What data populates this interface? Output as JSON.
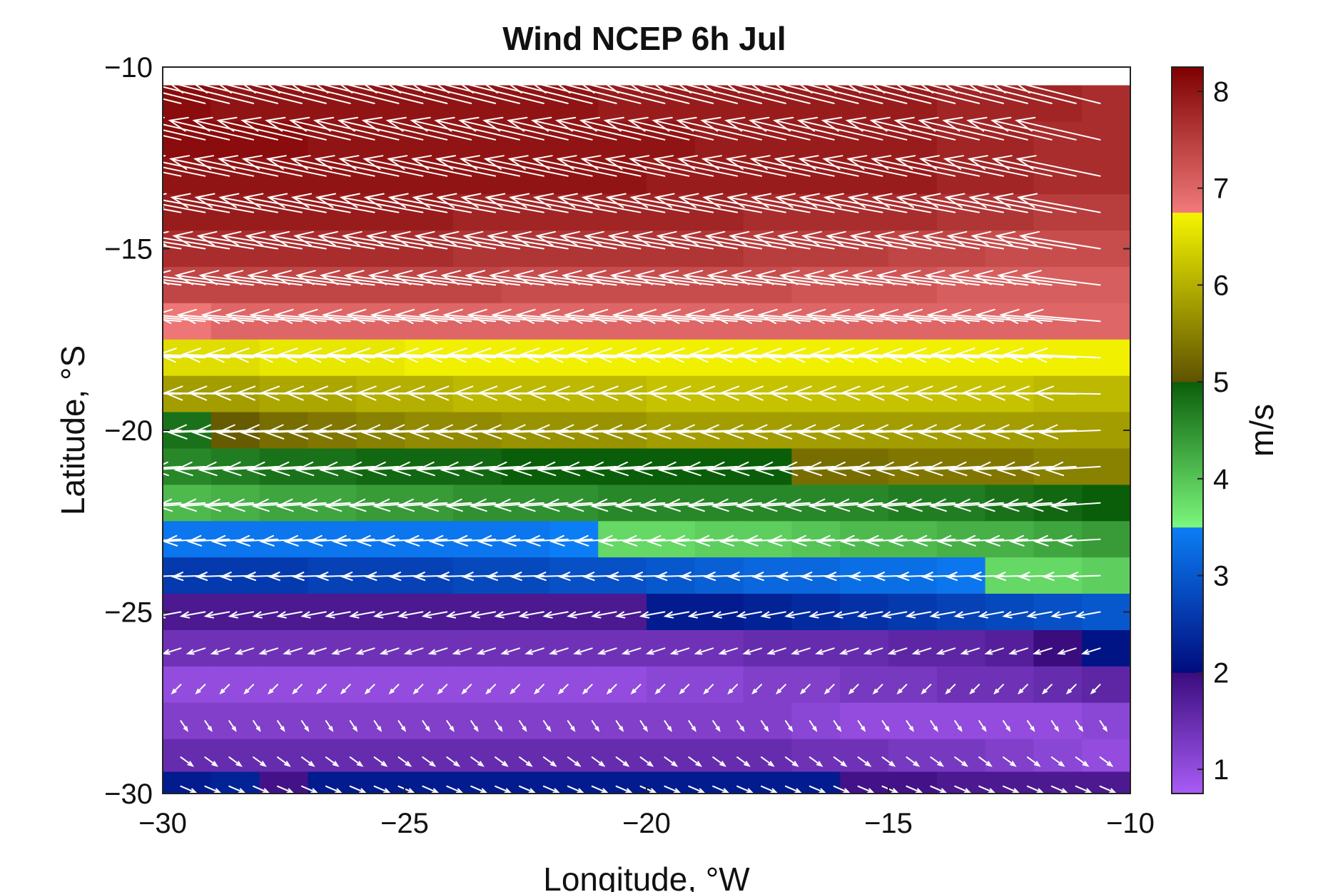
{
  "chart_data": {
    "type": "heatmap",
    "title": "Wind NCEP 6h Jul",
    "xlabel": "Longitude, °W",
    "ylabel": "Latitude, °S",
    "xlim": [
      -30,
      -10
    ],
    "ylim": [
      -30,
      -10
    ],
    "x_ticks": [
      -30,
      -25,
      -20,
      -15,
      -10
    ],
    "y_ticks": [
      -10,
      -15,
      -20,
      -25,
      -30
    ],
    "grid": false,
    "grid_spacing_deg": 1,
    "colorbar": {
      "label": "m/s",
      "range": [
        0.75,
        8.25
      ],
      "ticks": [
        1,
        2,
        3,
        4,
        5,
        6,
        7,
        8
      ],
      "position": "right",
      "segments": [
        {
          "range": [
            0.75,
            2.0
          ],
          "from": "#a95cf5",
          "to": "#3a0c7e"
        },
        {
          "range": [
            2.0,
            3.5
          ],
          "from": "#000c7e",
          "to": "#0c7ef5"
        },
        {
          "range": [
            3.5,
            5.0
          ],
          "from": "#7cf77c",
          "to": "#0a5e0a"
        },
        {
          "range": [
            5.0,
            6.75
          ],
          "from": "#5e5200",
          "to": "#f5f500"
        },
        {
          "range": [
            6.75,
            8.25
          ],
          "from": "#f27a7a",
          "to": "#7e0000"
        }
      ]
    },
    "rows": [
      {
        "lat": -11,
        "speeds": [
          8.1,
          8.0,
          8.0,
          8.0,
          8.0,
          8.0,
          8.0,
          8.0,
          8.0,
          7.9,
          7.9,
          7.9,
          7.9,
          7.9,
          7.9,
          7.9,
          7.8,
          7.8,
          7.8,
          7.7
        ],
        "u": -8.0,
        "v": 2.0
      },
      {
        "lat": -12,
        "speeds": [
          8.1,
          8.1,
          8.1,
          8.0,
          8.0,
          8.0,
          8.0,
          8.0,
          8.0,
          8.0,
          8.0,
          7.9,
          7.9,
          7.9,
          7.9,
          7.9,
          7.8,
          7.8,
          7.7,
          7.7
        ],
        "u": -7.8,
        "v": 1.8
      },
      {
        "lat": -13,
        "speeds": [
          8.0,
          8.0,
          8.0,
          8.0,
          8.0,
          8.0,
          8.0,
          8.0,
          8.0,
          8.0,
          7.9,
          7.9,
          7.9,
          7.9,
          7.9,
          7.9,
          7.8,
          7.8,
          7.7,
          7.7
        ],
        "u": -7.7,
        "v": 1.6
      },
      {
        "lat": -14,
        "speeds": [
          7.9,
          7.9,
          7.9,
          7.9,
          7.9,
          7.9,
          7.8,
          7.8,
          7.8,
          7.8,
          7.8,
          7.8,
          7.7,
          7.7,
          7.7,
          7.7,
          7.6,
          7.6,
          7.5,
          7.5
        ],
        "u": -7.6,
        "v": 1.4
      },
      {
        "lat": -15,
        "speeds": [
          7.7,
          7.7,
          7.7,
          7.7,
          7.7,
          7.7,
          7.6,
          7.6,
          7.6,
          7.6,
          7.6,
          7.6,
          7.5,
          7.5,
          7.5,
          7.4,
          7.4,
          7.3,
          7.3,
          7.3
        ],
        "u": -7.4,
        "v": 1.2
      },
      {
        "lat": -16,
        "speeds": [
          7.4,
          7.4,
          7.4,
          7.4,
          7.4,
          7.4,
          7.4,
          7.3,
          7.3,
          7.3,
          7.3,
          7.3,
          7.3,
          7.2,
          7.2,
          7.2,
          7.1,
          7.1,
          7.1,
          7.1
        ],
        "u": -7.2,
        "v": 0.9
      },
      {
        "lat": -17,
        "speeds": [
          6.8,
          7.0,
          7.0,
          7.0,
          7.0,
          7.0,
          7.0,
          7.0,
          7.0,
          7.0,
          7.0,
          7.0,
          7.0,
          7.0,
          7.0,
          7.0,
          7.0,
          7.0,
          7.0,
          7.0
        ],
        "u": -7.0,
        "v": 0.6
      },
      {
        "lat": -18,
        "speeds": [
          6.5,
          6.5,
          6.6,
          6.6,
          6.6,
          6.7,
          6.7,
          6.7,
          6.7,
          6.7,
          6.7,
          6.7,
          6.7,
          6.7,
          6.7,
          6.7,
          6.7,
          6.7,
          6.7,
          6.7
        ],
        "u": -6.6,
        "v": 0.3
      },
      {
        "lat": -19,
        "speeds": [
          5.8,
          5.8,
          5.9,
          5.9,
          6.0,
          6.0,
          6.1,
          6.1,
          6.1,
          6.1,
          6.2,
          6.2,
          6.2,
          6.2,
          6.2,
          6.2,
          6.2,
          6.2,
          6.1,
          6.1
        ],
        "u": -6.0,
        "v": 0.1
      },
      {
        "lat": -20,
        "speeds": [
          4.8,
          5.1,
          5.3,
          5.4,
          5.5,
          5.6,
          5.6,
          5.7,
          5.7,
          5.7,
          5.8,
          5.8,
          5.8,
          5.8,
          5.8,
          5.8,
          5.8,
          5.8,
          5.8,
          5.8
        ],
        "u": -5.6,
        "v": -0.2
      },
      {
        "lat": -21,
        "speeds": [
          4.6,
          4.7,
          4.8,
          4.8,
          4.9,
          4.9,
          4.9,
          5.0,
          5.0,
          5.0,
          5.0,
          5.0,
          5.0,
          5.3,
          5.3,
          5.4,
          5.4,
          5.4,
          5.5,
          5.5
        ],
        "u": -5.0,
        "v": -0.3
      },
      {
        "lat": -22,
        "speeds": [
          4.1,
          4.2,
          4.3,
          4.3,
          4.4,
          4.4,
          4.5,
          4.5,
          4.5,
          4.6,
          4.6,
          4.6,
          4.6,
          4.6,
          4.6,
          4.7,
          4.7,
          4.8,
          4.9,
          5.0
        ],
        "u": -4.5,
        "v": -0.3
      },
      {
        "lat": -23,
        "speeds": [
          3.4,
          3.4,
          3.4,
          3.4,
          3.4,
          3.4,
          3.4,
          3.4,
          3.5,
          3.8,
          3.8,
          3.9,
          3.9,
          4.0,
          4.1,
          4.1,
          4.2,
          4.2,
          4.3,
          4.4
        ],
        "u": -3.8,
        "v": -0.2
      },
      {
        "lat": -24,
        "speeds": [
          2.6,
          2.6,
          2.6,
          2.7,
          2.7,
          2.7,
          2.8,
          2.8,
          2.9,
          2.9,
          3.0,
          3.1,
          3.2,
          3.2,
          3.3,
          3.3,
          3.4,
          3.8,
          3.8,
          3.9
        ],
        "u": -3.0,
        "v": -0.1
      },
      {
        "lat": -25,
        "speeds": [
          1.8,
          1.8,
          1.8,
          1.8,
          1.8,
          1.8,
          1.8,
          1.8,
          1.8,
          1.8,
          2.2,
          2.2,
          2.3,
          2.4,
          2.5,
          2.6,
          2.7,
          2.8,
          2.9,
          3.0
        ],
        "u": -2.2,
        "v": -0.4
      },
      {
        "lat": -26,
        "speeds": [
          1.4,
          1.4,
          1.4,
          1.4,
          1.4,
          1.4,
          1.4,
          1.4,
          1.4,
          1.4,
          1.4,
          1.4,
          1.5,
          1.5,
          1.5,
          1.6,
          1.6,
          1.7,
          2.0,
          2.1
        ],
        "u": -1.6,
        "v": -0.5
      },
      {
        "lat": -27,
        "speeds": [
          1.0,
          1.0,
          1.0,
          1.0,
          1.0,
          1.0,
          1.0,
          1.0,
          1.0,
          1.0,
          1.1,
          1.1,
          1.2,
          1.2,
          1.3,
          1.3,
          1.4,
          1.4,
          1.5,
          1.6
        ],
        "u": -0.8,
        "v": -0.8
      },
      {
        "lat": -28,
        "speeds": [
          1.2,
          1.2,
          1.2,
          1.2,
          1.2,
          1.2,
          1.2,
          1.2,
          1.2,
          1.2,
          1.2,
          1.2,
          1.2,
          1.1,
          1.0,
          1.0,
          1.0,
          1.0,
          1.0,
          1.1
        ],
        "u": 0.6,
        "v": -0.9
      },
      {
        "lat": -29,
        "speeds": [
          1.5,
          1.5,
          1.5,
          1.5,
          1.5,
          1.5,
          1.5,
          1.5,
          1.5,
          1.5,
          1.5,
          1.5,
          1.5,
          1.4,
          1.4,
          1.3,
          1.3,
          1.2,
          1.1,
          1.0
        ],
        "u": 1.1,
        "v": -0.8
      },
      {
        "lat": -29.8,
        "speeds": [
          2.2,
          2.3,
          1.9,
          2.2,
          2.2,
          2.2,
          2.2,
          2.2,
          2.2,
          2.2,
          2.2,
          2.2,
          2.2,
          2.2,
          1.9,
          1.9,
          1.8,
          1.8,
          1.8,
          1.8
        ],
        "u": 1.4,
        "v": -0.6
      }
    ]
  }
}
